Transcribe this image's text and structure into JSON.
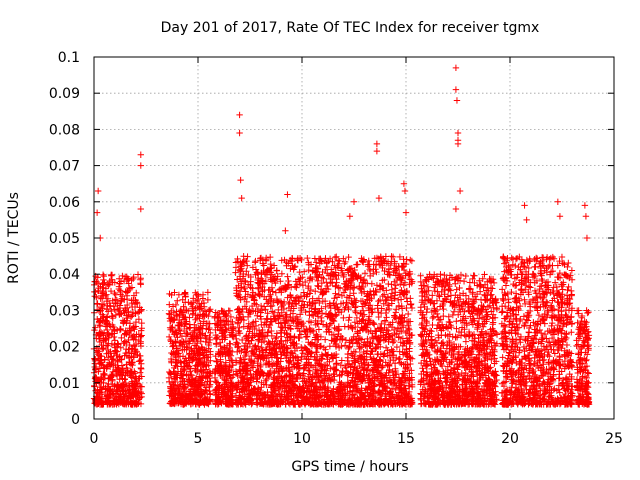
{
  "chart_data": {
    "type": "scatter",
    "title": "Day 201 of 2017, Rate Of TEC Index for receiver tgmx",
    "xlabel": "GPS time / hours",
    "ylabel": "ROTI / TECUs",
    "xlim": [
      0,
      25
    ],
    "ylim": [
      0,
      0.1
    ],
    "x_ticks": [
      0,
      5,
      10,
      15,
      20,
      25
    ],
    "y_ticks": [
      0,
      0.01,
      0.02,
      0.03,
      0.04,
      0.05,
      0.06,
      0.07,
      0.08,
      0.09,
      0.1
    ],
    "x_tick_labels": [
      "0",
      "5",
      "10",
      "15",
      "20",
      "25"
    ],
    "y_tick_labels": [
      "0",
      "0.01",
      "0.02",
      "0.03",
      "0.04",
      "0.05",
      "0.06",
      "0.07",
      "0.08",
      "0.09",
      "0.1"
    ],
    "grid": true,
    "legend": "none",
    "marker": "+",
    "color": "#ff0000",
    "data_coverage": [
      {
        "start": 0.0,
        "end": 2.3,
        "typical_max": 0.04
      },
      {
        "start": 3.6,
        "end": 5.6,
        "typical_max": 0.035
      },
      {
        "start": 5.8,
        "end": 6.7,
        "typical_max": 0.03
      },
      {
        "start": 6.8,
        "end": 15.3,
        "typical_max": 0.045
      },
      {
        "start": 15.7,
        "end": 19.4,
        "typical_max": 0.04
      },
      {
        "start": 19.6,
        "end": 23.0,
        "typical_max": 0.045
      },
      {
        "start": 23.2,
        "end": 23.8,
        "typical_max": 0.03
      }
    ],
    "notable_points": [
      {
        "x": 0.2,
        "y": 0.063
      },
      {
        "x": 0.15,
        "y": 0.057
      },
      {
        "x": 0.3,
        "y": 0.05
      },
      {
        "x": 2.25,
        "y": 0.073
      },
      {
        "x": 2.25,
        "y": 0.07
      },
      {
        "x": 2.25,
        "y": 0.058
      },
      {
        "x": 7.0,
        "y": 0.084
      },
      {
        "x": 7.0,
        "y": 0.079
      },
      {
        "x": 7.05,
        "y": 0.066
      },
      {
        "x": 7.1,
        "y": 0.061
      },
      {
        "x": 9.3,
        "y": 0.062
      },
      {
        "x": 9.2,
        "y": 0.052
      },
      {
        "x": 12.5,
        "y": 0.06
      },
      {
        "x": 12.3,
        "y": 0.056
      },
      {
        "x": 13.6,
        "y": 0.076
      },
      {
        "x": 13.6,
        "y": 0.074
      },
      {
        "x": 13.7,
        "y": 0.061
      },
      {
        "x": 14.9,
        "y": 0.065
      },
      {
        "x": 14.95,
        "y": 0.063
      },
      {
        "x": 15.0,
        "y": 0.057
      },
      {
        "x": 17.4,
        "y": 0.097
      },
      {
        "x": 17.4,
        "y": 0.091
      },
      {
        "x": 17.45,
        "y": 0.088
      },
      {
        "x": 17.5,
        "y": 0.079
      },
      {
        "x": 17.5,
        "y": 0.077
      },
      {
        "x": 17.5,
        "y": 0.076
      },
      {
        "x": 17.6,
        "y": 0.063
      },
      {
        "x": 17.4,
        "y": 0.058
      },
      {
        "x": 20.7,
        "y": 0.059
      },
      {
        "x": 20.8,
        "y": 0.055
      },
      {
        "x": 22.3,
        "y": 0.06
      },
      {
        "x": 22.4,
        "y": 0.056
      },
      {
        "x": 23.6,
        "y": 0.059
      },
      {
        "x": 23.65,
        "y": 0.056
      },
      {
        "x": 23.7,
        "y": 0.05
      }
    ]
  }
}
